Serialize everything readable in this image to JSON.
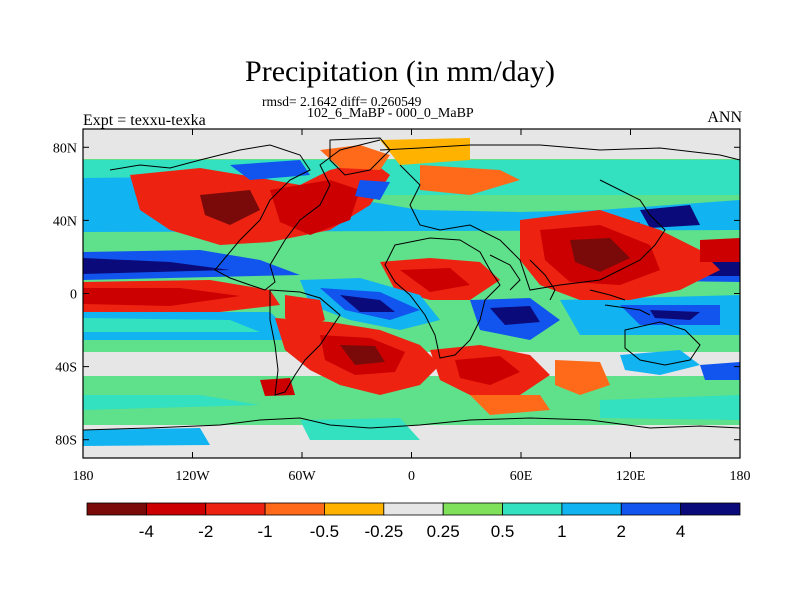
{
  "header": {
    "title": "Precipitation (in mm/day)",
    "stats": "rmsd= 2.1642 diff= 0.260549",
    "experiments": "102_6_MaBP - 000_0_MaBP",
    "left_label": "Expt = texxu-texka",
    "right_label": "ANN"
  },
  "map": {
    "lon_ticks": [
      "180",
      "120W",
      "60W",
      "0",
      "60E",
      "120E",
      "180"
    ],
    "lat_ticks": [
      "80N",
      "40N",
      "0",
      "40S",
      "80S"
    ],
    "projection": "cylindrical-equidistant",
    "lon_range": [
      -180,
      180
    ],
    "lat_range": [
      -90,
      90
    ]
  },
  "colorbar": {
    "labels": [
      "-4",
      "-2",
      "-1",
      "-0.5",
      "-0.25",
      "0.25",
      "0.5",
      "1",
      "2",
      "4"
    ],
    "colors": [
      "#7a0a0a",
      "#cc0000",
      "#ee2211",
      "#ff6a1a",
      "#ffb300",
      "#e6e6e6",
      "#7fe05a",
      "#33e0c0",
      "#11b4f0",
      "#1155ee",
      "#0a0a7a"
    ]
  }
}
